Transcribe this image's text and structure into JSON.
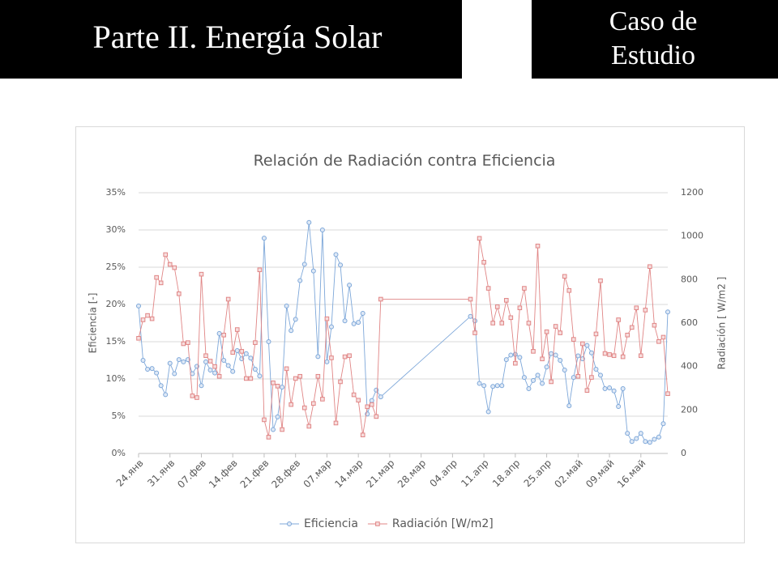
{
  "header": {
    "title": "Parte II. Energía Solar",
    "badge": [
      "Caso de",
      "Estudio"
    ]
  },
  "chart_data": {
    "type": "line",
    "title": "Relación de Radiación contra Eficiencia",
    "y_label": "Eficiencia [-]",
    "y2_label": "Radiación [ W/m2 ]",
    "categories": [
      "24.янв",
      null,
      null,
      null,
      null,
      null,
      null,
      "31.янв",
      null,
      null,
      null,
      null,
      null,
      null,
      "07.фев",
      null,
      null,
      null,
      null,
      null,
      null,
      "14.фев",
      null,
      null,
      null,
      null,
      null,
      null,
      "21.фев",
      null,
      null,
      null,
      null,
      null,
      null,
      "28.фев",
      null,
      null,
      null,
      null,
      null,
      null,
      "07.мар",
      null,
      null,
      null,
      null,
      null,
      null,
      "14.мар",
      null,
      null,
      null,
      null,
      null,
      null,
      "21.мар",
      null,
      null,
      null,
      null,
      null,
      null,
      "28.мар",
      null,
      null,
      null,
      null,
      null,
      null,
      "04.апр",
      null,
      null,
      null,
      null,
      null,
      null,
      "11.апр",
      null,
      null,
      null,
      null,
      null,
      null,
      "18.апр",
      null,
      null,
      null,
      null,
      null,
      null,
      "25.апр",
      null,
      null,
      null,
      null,
      null,
      null,
      "02.май",
      null,
      null,
      null,
      null,
      null,
      null,
      "09.май",
      null,
      null,
      null,
      null,
      null,
      null,
      "16.май",
      null,
      null,
      null,
      null,
      null,
      null
    ],
    "series": [
      {
        "name": "Eficiencia",
        "color": "#7da7d9",
        "marker": "circle",
        "axis": "y",
        "values": [
          19.8,
          12.5,
          11.3,
          11.4,
          10.8,
          9.1,
          7.9,
          12.1,
          10.7,
          12.6,
          12.3,
          12.6,
          10.7,
          11.7,
          9.1,
          12.3,
          11.2,
          10.8,
          16.1,
          12.5,
          11.8,
          11.0,
          13.8,
          12.7,
          13.4,
          12.8,
          11.3,
          10.4,
          28.9,
          15.0,
          3.2,
          4.9,
          8.9,
          19.8,
          16.5,
          18.0,
          23.2,
          25.4,
          31.0,
          24.5,
          13.0,
          30.0,
          12.3,
          17.0,
          26.7,
          25.3,
          17.8,
          22.6,
          17.4,
          17.6,
          18.8,
          5.3,
          7.1,
          8.5,
          7.6,
          null,
          null,
          null,
          null,
          null,
          null,
          null,
          null,
          null,
          null,
          null,
          null,
          null,
          null,
          null,
          null,
          null,
          null,
          null,
          18.4,
          17.8,
          9.4,
          9.1,
          5.6,
          9.0,
          9.1,
          9.1,
          12.6,
          13.2,
          13.3,
          12.9,
          10.2,
          8.7,
          9.8,
          10.5,
          9.4,
          11.6,
          13.4,
          13.2,
          12.5,
          11.2,
          6.4,
          10.2,
          13.1,
          12.7,
          14.5,
          13.5,
          11.3,
          10.5,
          8.7,
          8.8,
          8.4,
          6.3,
          8.7,
          2.7,
          1.6,
          2.0,
          2.7,
          1.6,
          1.5,
          1.9,
          2.2,
          4.0,
          19.0
        ]
      },
      {
        "name": "Radiación [W/m2]",
        "color": "#e08585",
        "marker": "square",
        "axis": "y2",
        "values": [
          530,
          615,
          635,
          620,
          810,
          785,
          915,
          870,
          855,
          735,
          505,
          510,
          265,
          257,
          825,
          450,
          425,
          400,
          355,
          545,
          710,
          465,
          570,
          470,
          345,
          345,
          510,
          845,
          155,
          75,
          325,
          310,
          110,
          390,
          225,
          345,
          355,
          210,
          125,
          230,
          355,
          250,
          620,
          440,
          140,
          330,
          445,
          450,
          270,
          245,
          85,
          215,
          225,
          170,
          710,
          null,
          null,
          null,
          null,
          null,
          null,
          null,
          null,
          null,
          null,
          null,
          null,
          null,
          null,
          null,
          null,
          null,
          null,
          null,
          710,
          555,
          990,
          880,
          760,
          600,
          675,
          600,
          705,
          625,
          415,
          670,
          760,
          600,
          470,
          955,
          435,
          560,
          330,
          585,
          555,
          815,
          750,
          525,
          355,
          505,
          290,
          350,
          550,
          795,
          460,
          455,
          450,
          615,
          445,
          545,
          580,
          670,
          450,
          660,
          860,
          590,
          515,
          535,
          275
        ]
      }
    ],
    "ylim": [
      0,
      35
    ],
    "yticks": [
      {
        "value": 0,
        "label": "0%"
      },
      {
        "value": 5,
        "label": "5%"
      },
      {
        "value": 10,
        "label": "10%"
      },
      {
        "value": 15,
        "label": "15%"
      },
      {
        "value": 20,
        "label": "20%"
      },
      {
        "value": 25,
        "label": "25%"
      },
      {
        "value": 30,
        "label": "30%"
      },
      {
        "value": 35,
        "label": "35%"
      }
    ],
    "y2lim": [
      0,
      1200
    ],
    "y2ticks": [
      0,
      200,
      400,
      600,
      800,
      1000,
      1200
    ],
    "grid": true,
    "span_gaps": true,
    "legend": "bottom"
  }
}
